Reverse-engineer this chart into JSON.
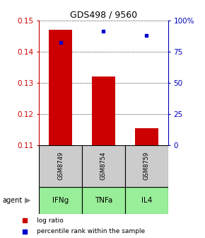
{
  "title": "GDS498 / 9560",
  "categories": [
    "IFNg",
    "TNFa",
    "IL4"
  ],
  "sample_ids": [
    "GSM8749",
    "GSM8754",
    "GSM8759"
  ],
  "bar_values": [
    0.147,
    0.132,
    0.1155
  ],
  "bar_base": 0.11,
  "percentile_values": [
    82,
    91,
    88
  ],
  "ylim_left": [
    0.11,
    0.15
  ],
  "ylim_right": [
    0,
    100
  ],
  "yticks_left": [
    0.11,
    0.12,
    0.13,
    0.14,
    0.15
  ],
  "ytick_labels_left": [
    "0.11",
    "0.12",
    "0.13",
    "0.14",
    "0.15"
  ],
  "yticks_right": [
    0,
    25,
    50,
    75,
    100
  ],
  "ytick_labels_right": [
    "0",
    "25",
    "50",
    "75",
    "100%"
  ],
  "bar_color": "#cc0000",
  "dot_color": "#0000cc",
  "bar_width": 0.55,
  "sample_box_color": "#cccccc",
  "agent_row_color": "#99ee99",
  "left_axis_color": "#cc0000",
  "right_axis_color": "#0000bb",
  "legend_bar_label": "log ratio",
  "legend_dot_label": "percentile rank within the sample",
  "title_fontsize": 9
}
